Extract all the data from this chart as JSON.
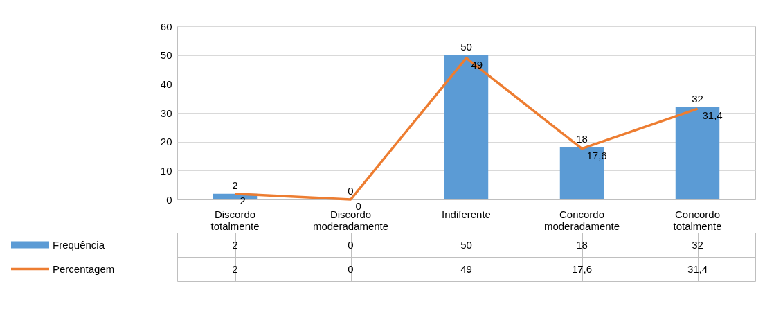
{
  "chart_data": {
    "type": "bar",
    "categories": [
      "Discordo totalmente",
      "Discordo moderadamente",
      "Indiferente",
      "Concordo moderadamente",
      "Concordo totalmente"
    ],
    "series": [
      {
        "name": "Frequência",
        "type": "bar",
        "color": "#5b9bd5",
        "values": [
          2,
          0,
          50,
          18,
          32
        ],
        "value_labels": [
          "2",
          "0",
          "50",
          "18",
          "32"
        ]
      },
      {
        "name": "Percentagem",
        "type": "line",
        "color": "#ed7d31",
        "values": [
          2,
          0,
          49,
          17.6,
          31.4
        ],
        "value_labels": [
          "2",
          "0",
          "49",
          "17,6",
          "31,4"
        ]
      }
    ],
    "ylim": [
      0,
      60
    ],
    "yticks": [
      0,
      10,
      20,
      30,
      40,
      50,
      60
    ],
    "grid": "y",
    "legend": "bottom left",
    "marker": "none",
    "line_style": "solid"
  }
}
